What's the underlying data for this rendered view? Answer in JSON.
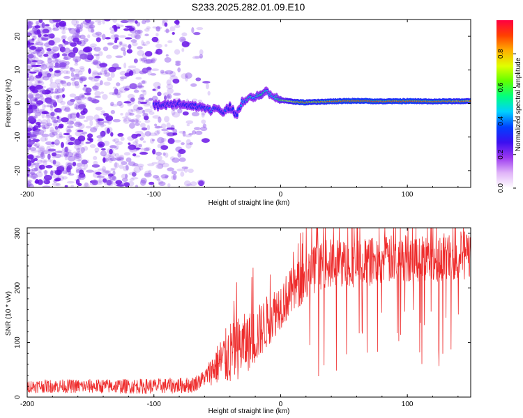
{
  "title": "S233.2025.282.01.09.E10",
  "colors": {
    "snr_line": "#ee2b2b",
    "noise": "#8a4bea",
    "axis": "#000000"
  },
  "chart_data": [
    {
      "type": "heatmap",
      "name": "spectrogram",
      "xlabel": "Height of straight line (km)",
      "ylabel": "Frequency (Hz)",
      "xlim": [
        -200,
        150
      ],
      "ylim": [
        -25,
        25
      ],
      "xticks": [
        -200,
        -100,
        0,
        100
      ],
      "xtick_labels": [
        "-200",
        "-100",
        "0",
        "100"
      ],
      "yticks": [
        -20,
        -10,
        0,
        10,
        20
      ],
      "ytick_labels": [
        "-20",
        "-10",
        "0",
        "10",
        "20"
      ],
      "colorbar": {
        "label": "Normalized spectral amplitude",
        "range": [
          0,
          1
        ],
        "ticks": [
          0.0,
          0.2,
          0.4,
          0.6,
          0.8
        ],
        "tick_labels": [
          "0.0",
          "0.2",
          "0.4",
          "0.6",
          "0.8"
        ],
        "colormap": [
          "#ffffff",
          "#e0b4f8",
          "#9b38f0",
          "#3b0ff0",
          "#0040ff",
          "#00d0ff",
          "#00ff80",
          "#60ff00",
          "#e0ff00",
          "#ffb000",
          "#ff4000",
          "#ff0040"
        ]
      },
      "ridge": {
        "description": "dominant frequency trace vs height",
        "x": [
          -100,
          -90,
          -80,
          -70,
          -60,
          -55,
          -50,
          -45,
          -40,
          -35,
          -30,
          -25,
          -20,
          -15,
          -12,
          -8,
          -5,
          0,
          10,
          20,
          40,
          60,
          80,
          100,
          120,
          150
        ],
        "y": [
          -0.6,
          -0.5,
          0.0,
          -0.8,
          -1.2,
          -2.0,
          -1.5,
          -2.5,
          -1.0,
          -3.5,
          0.5,
          1.5,
          2.0,
          3.0,
          4.0,
          2.5,
          2.0,
          1.0,
          0.5,
          0.3,
          0.6,
          0.8,
          0.6,
          0.7,
          0.6,
          0.7
        ],
        "amplitude": [
          0.3,
          0.25,
          0.25,
          0.3,
          0.35,
          0.4,
          0.3,
          0.35,
          0.3,
          0.3,
          0.4,
          0.5,
          0.45,
          0.55,
          0.5,
          0.45,
          0.5,
          0.6,
          0.85,
          0.9,
          0.9,
          0.95,
          0.9,
          0.95,
          0.9,
          0.85
        ]
      }
    },
    {
      "type": "line",
      "name": "snr",
      "xlabel": "Height of straight line (km)",
      "ylabel": "SNR (10 * v/v)",
      "xlim": [
        -200,
        150
      ],
      "ylim": [
        0,
        310
      ],
      "xticks": [
        -200,
        -100,
        0,
        100
      ],
      "xtick_labels": [
        "-200",
        "-100",
        "0",
        "100"
      ],
      "yticks": [
        0,
        100,
        200,
        300
      ],
      "ytick_labels": [
        "0",
        "100",
        "200",
        "300"
      ],
      "trend": {
        "description": "approximate envelope of the noisy SNR trace",
        "x": [
          -200,
          -150,
          -100,
          -70,
          -60,
          -50,
          -40,
          -30,
          -20,
          -10,
          0,
          10,
          20,
          30,
          40,
          60,
          80,
          100,
          120,
          150
        ],
        "y": [
          20,
          20,
          20,
          22,
          35,
          60,
          80,
          95,
          110,
          140,
          170,
          195,
          220,
          240,
          245,
          245,
          250,
          255,
          255,
          260
        ]
      },
      "noise_amplitude": [
        {
          "x": -200,
          "amp": 12
        },
        {
          "x": -60,
          "amp": 15
        },
        {
          "x": -40,
          "amp": 60
        },
        {
          "x": 0,
          "amp": 45
        },
        {
          "x": 150,
          "amp": 45
        }
      ]
    }
  ]
}
